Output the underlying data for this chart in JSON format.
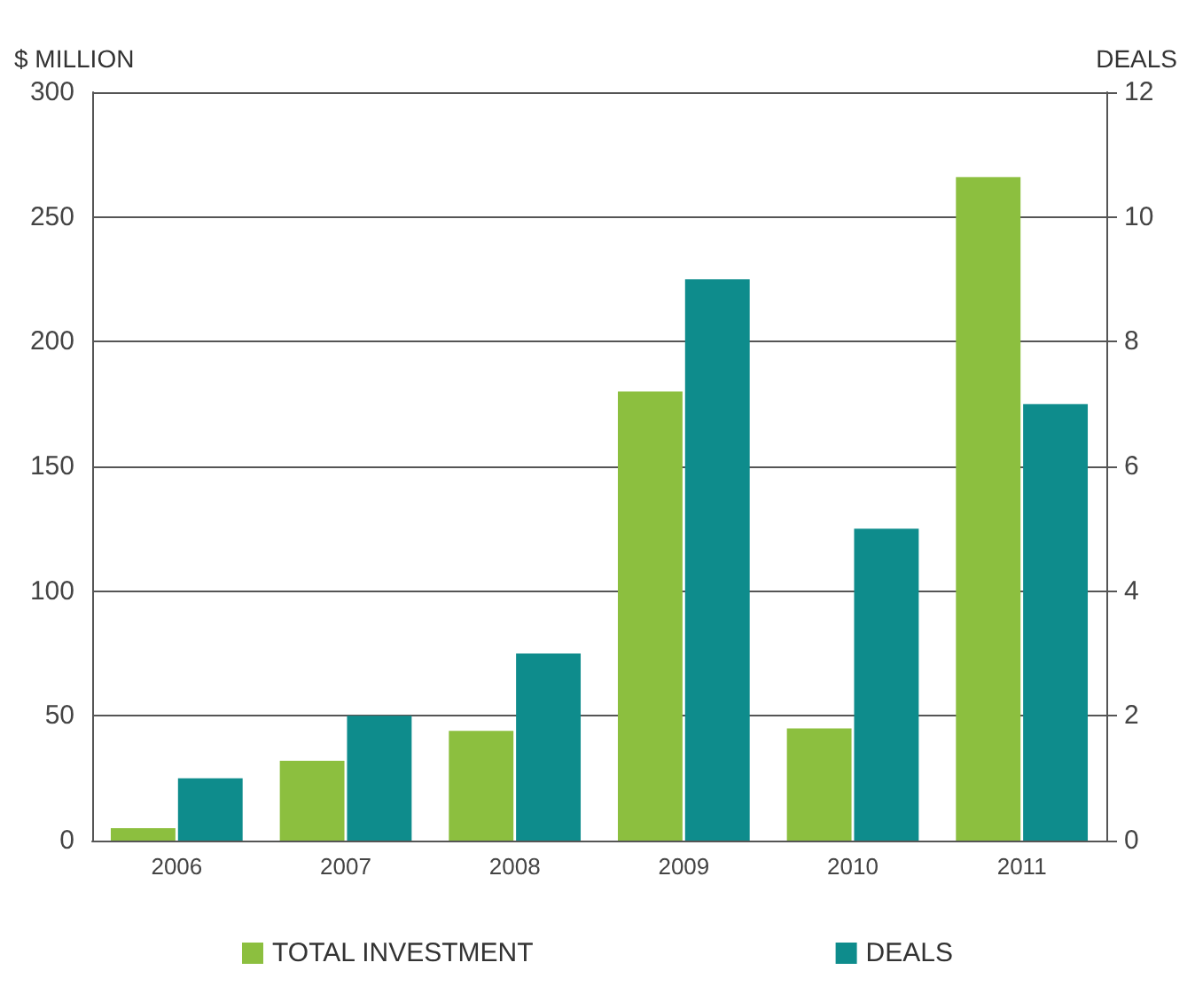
{
  "chart_data": {
    "type": "bar",
    "ylabel": "$ MILLION",
    "y2label": "DEALS",
    "categories": [
      "2006",
      "2007",
      "2008",
      "2009",
      "2010",
      "2011"
    ],
    "series": [
      {
        "name": "TOTAL INVESTMENT",
        "color": "#8cbf3f",
        "values": [
          5,
          32,
          44,
          180,
          45,
          266
        ]
      },
      {
        "name": "DEALS",
        "color": "#0e8c8c",
        "axis": "y2",
        "values": [
          1,
          2,
          3,
          9,
          5,
          7
        ]
      }
    ],
    "ylim": [
      0,
      300
    ],
    "yticks": [
      0,
      50,
      100,
      150,
      200,
      250,
      300
    ],
    "y2lim": [
      0,
      12
    ],
    "y2ticks": [
      0,
      2,
      4,
      6,
      8,
      10,
      12
    ],
    "grid": "y",
    "legend": "bottom"
  }
}
